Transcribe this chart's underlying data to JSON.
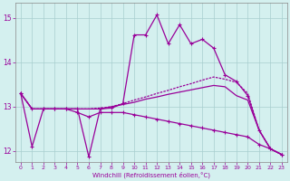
{
  "xlabel": "Windchill (Refroidissement éolien,°C)",
  "bg_color": "#d4f0ef",
  "line_color": "#990099",
  "grid_color": "#a8cece",
  "xlim": [
    -0.5,
    23.5
  ],
  "ylim": [
    11.75,
    15.35
  ],
  "xticks": [
    0,
    1,
    2,
    3,
    4,
    5,
    6,
    7,
    8,
    9,
    10,
    11,
    12,
    13,
    14,
    15,
    16,
    17,
    18,
    19,
    20,
    21,
    22,
    23
  ],
  "yticks": [
    12,
    13,
    14,
    15
  ],
  "s1_x": [
    0,
    1,
    2,
    3,
    4,
    5,
    6,
    7,
    8,
    9,
    10,
    11,
    12,
    13,
    14,
    15,
    16,
    17,
    18,
    19,
    20,
    21,
    22,
    23
  ],
  "s1_y": [
    13.3,
    12.1,
    12.95,
    12.95,
    12.95,
    12.95,
    11.87,
    12.95,
    12.97,
    13.07,
    14.62,
    14.62,
    15.07,
    14.42,
    14.85,
    14.42,
    14.52,
    14.32,
    13.72,
    13.57,
    13.25,
    12.47,
    12.05,
    11.92
  ],
  "s2_x": [
    0,
    1,
    2,
    3,
    4,
    5,
    6,
    7,
    8,
    9,
    10,
    11,
    12,
    13,
    14,
    15,
    16,
    17,
    18,
    19,
    20,
    21,
    22,
    23
  ],
  "s2_y": [
    13.3,
    12.95,
    12.95,
    12.95,
    12.95,
    12.95,
    12.95,
    12.97,
    13.0,
    13.07,
    13.15,
    13.22,
    13.3,
    13.37,
    13.45,
    13.52,
    13.6,
    13.67,
    13.62,
    13.55,
    13.3,
    12.47,
    12.05,
    11.92
  ],
  "s3_x": [
    0,
    1,
    2,
    3,
    4,
    5,
    6,
    7,
    8,
    9,
    10,
    11,
    12,
    13,
    14,
    15,
    16,
    17,
    18,
    19,
    20,
    21,
    22,
    23
  ],
  "s3_y": [
    13.3,
    12.95,
    12.95,
    12.95,
    12.95,
    12.95,
    12.95,
    12.95,
    13.0,
    13.05,
    13.1,
    13.17,
    13.22,
    13.28,
    13.33,
    13.38,
    13.43,
    13.48,
    13.45,
    13.25,
    13.15,
    12.47,
    12.05,
    11.92
  ],
  "s4_x": [
    0,
    1,
    2,
    3,
    4,
    5,
    6,
    7,
    8,
    9,
    10,
    11,
    12,
    13,
    14,
    15,
    16,
    17,
    18,
    19,
    20,
    21,
    22,
    23
  ],
  "s4_y": [
    13.3,
    12.95,
    12.95,
    12.95,
    12.95,
    12.87,
    12.77,
    12.87,
    12.87,
    12.87,
    12.82,
    12.77,
    12.72,
    12.67,
    12.62,
    12.57,
    12.52,
    12.47,
    12.42,
    12.37,
    12.32,
    12.15,
    12.05,
    11.92
  ]
}
